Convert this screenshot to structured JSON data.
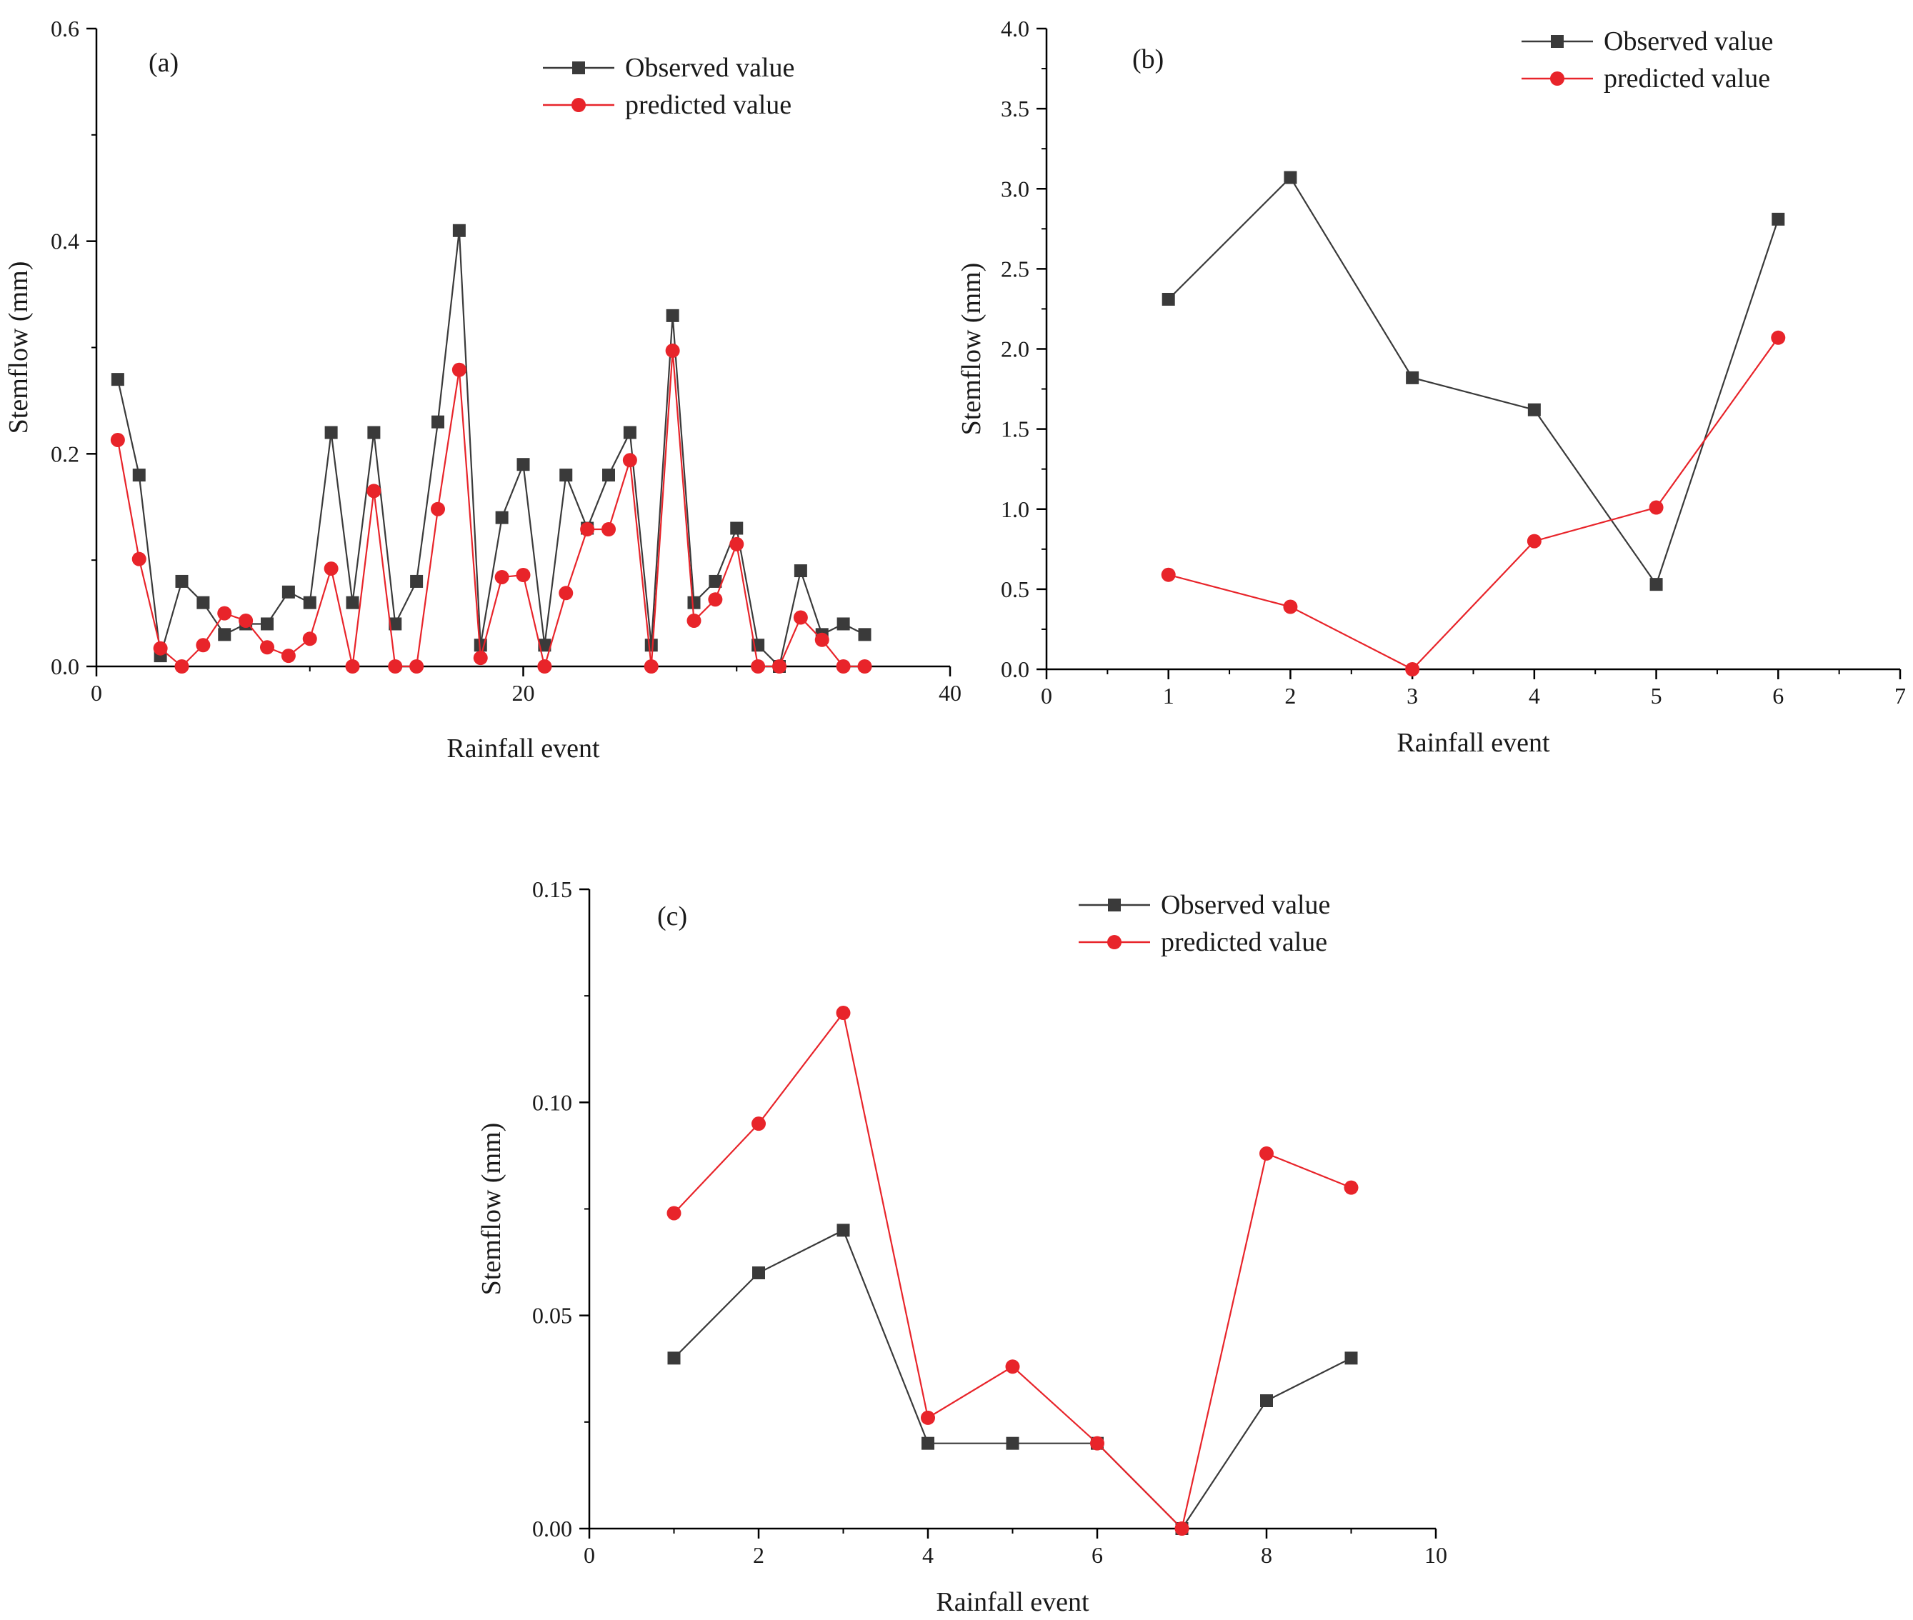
{
  "chart_data": [
    {
      "type": "line",
      "panel_label": "(a)",
      "xlabel": "Rainfall event",
      "ylabel": "Stemflow (mm)",
      "xlim": [
        0,
        40
      ],
      "ylim": [
        0,
        0.6
      ],
      "xticks": [
        0,
        20,
        40
      ],
      "yticks": [
        0.0,
        0.2,
        0.4,
        0.6
      ],
      "xtick_labels": [
        "0",
        "20",
        "40"
      ],
      "ytick_labels": [
        "0.0",
        "0.2",
        "0.4",
        "0.6"
      ],
      "legend_position": "top-right",
      "x": [
        1,
        2,
        3,
        4,
        5,
        6,
        7,
        8,
        9,
        10,
        11,
        12,
        13,
        14,
        15,
        16,
        17,
        18,
        19,
        20,
        21,
        22,
        23,
        24,
        25,
        26,
        27,
        28,
        29,
        30,
        31,
        32,
        33,
        34,
        35,
        36
      ],
      "series": [
        {
          "name": "Observed value",
          "color": "#3a3a3a",
          "marker": "square",
          "values": [
            0.27,
            0.18,
            0.01,
            0.08,
            0.06,
            0.03,
            0.04,
            0.04,
            0.07,
            0.06,
            0.22,
            0.06,
            0.22,
            0.04,
            0.08,
            0.23,
            0.41,
            0.02,
            0.14,
            0.19,
            0.02,
            0.18,
            0.13,
            0.18,
            0.22,
            0.02,
            0.33,
            0.06,
            0.08,
            0.13,
            0.02,
            0.0,
            0.09,
            0.03,
            0.04,
            0.03
          ]
        },
        {
          "name": "predicted value",
          "color": "#e8242a",
          "marker": "circle",
          "values": [
            0.213,
            0.101,
            0.017,
            0.0,
            0.02,
            0.05,
            0.043,
            0.018,
            0.01,
            0.026,
            0.092,
            0.0,
            0.165,
            0.0,
            0.0,
            0.148,
            0.279,
            0.008,
            0.084,
            0.086,
            0.0,
            0.069,
            0.129,
            0.129,
            0.194,
            0.0,
            0.297,
            0.043,
            0.063,
            0.115,
            0.0,
            0.0,
            0.046,
            0.025,
            0.0,
            0.0
          ]
        }
      ]
    },
    {
      "type": "line",
      "panel_label": "(b)",
      "xlabel": "Rainfall event",
      "ylabel": "Stemflow (mm)",
      "xlim": [
        0,
        7
      ],
      "ylim": [
        0,
        4.0
      ],
      "xticks": [
        0,
        1,
        2,
        3,
        4,
        5,
        6,
        7
      ],
      "yticks": [
        0.0,
        0.5,
        1.0,
        1.5,
        2.0,
        2.5,
        3.0,
        3.5,
        4.0
      ],
      "xtick_labels": [
        "0",
        "1",
        "2",
        "3",
        "4",
        "5",
        "6",
        "7"
      ],
      "ytick_labels": [
        "0.0",
        "0.5",
        "1.0",
        "1.5",
        "2.0",
        "2.5",
        "3.0",
        "3.5",
        "4.0"
      ],
      "legend_position": "top-right",
      "x": [
        1,
        2,
        3,
        4,
        5,
        6
      ],
      "series": [
        {
          "name": "Observed value",
          "color": "#3a3a3a",
          "marker": "square",
          "values": [
            2.31,
            3.07,
            1.82,
            1.62,
            0.53,
            2.81
          ]
        },
        {
          "name": "predicted value",
          "color": "#e8242a",
          "marker": "circle",
          "values": [
            0.59,
            0.39,
            0.0,
            0.8,
            1.01,
            2.07
          ]
        }
      ]
    },
    {
      "type": "line",
      "panel_label": "(c)",
      "xlabel": "Rainfall event",
      "ylabel": "Stemflow (mm)",
      "xlim": [
        0,
        10
      ],
      "ylim": [
        0,
        0.15
      ],
      "xticks": [
        0,
        2,
        4,
        6,
        8,
        10
      ],
      "yticks": [
        0.0,
        0.05,
        0.1,
        0.15
      ],
      "xtick_labels": [
        "0",
        "2",
        "4",
        "6",
        "8",
        "10"
      ],
      "ytick_labels": [
        "0.00",
        "0.05",
        "0.10",
        "0.15"
      ],
      "legend_position": "top-right",
      "x": [
        1,
        2,
        3,
        4,
        5,
        6,
        7,
        8,
        9
      ],
      "series": [
        {
          "name": "Observed value",
          "color": "#3a3a3a",
          "marker": "square",
          "values": [
            0.04,
            0.06,
            0.07,
            0.02,
            0.02,
            0.02,
            0.0,
            0.03,
            0.04
          ]
        },
        {
          "name": "predicted value",
          "color": "#e8242a",
          "marker": "circle",
          "values": [
            0.074,
            0.095,
            0.121,
            0.026,
            0.038,
            0.02,
            0.0,
            0.088,
            0.08
          ]
        }
      ]
    }
  ]
}
